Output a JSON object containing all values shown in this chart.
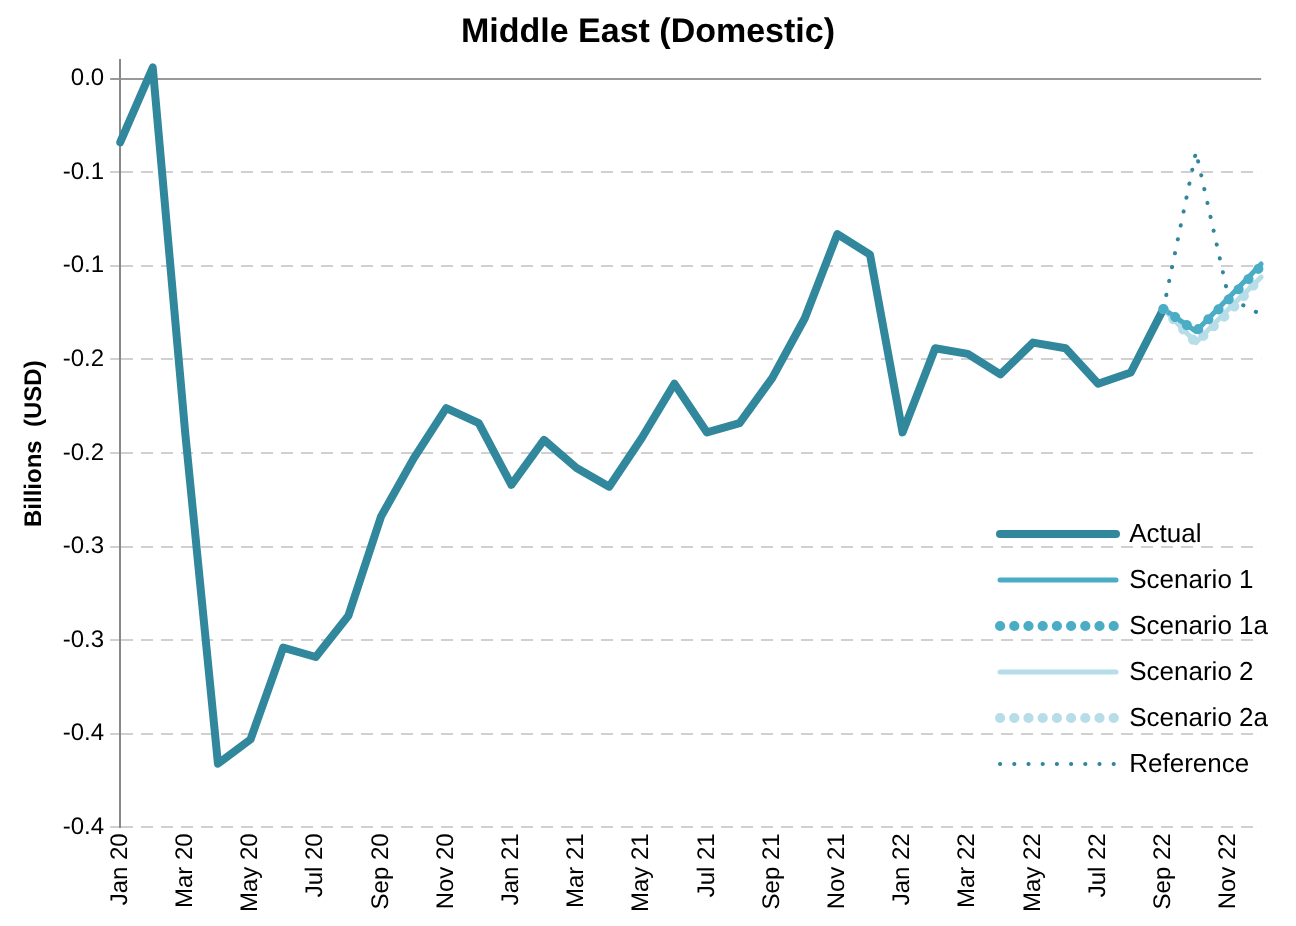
{
  "chart_data": {
    "type": "line",
    "title": "Middle East (Domestic)",
    "ylabel": "Billions  (USD)",
    "categories": [
      "Jan 20",
      null,
      "Mar 20",
      null,
      "May 20",
      null,
      "Jul 20",
      null,
      "Sep 20",
      null,
      "Nov 20",
      null,
      "Jan 21",
      null,
      "Mar 21",
      null,
      "May 21",
      null,
      "Jul 21",
      null,
      "Sep 21",
      null,
      "Nov 21",
      null,
      "Jan 22",
      null,
      "Mar 22",
      null,
      "May 22",
      null,
      "Jul 22",
      null,
      "Sep 22",
      null,
      "Nov 22",
      null
    ],
    "ylim": [
      -0.4,
      0.01
    ],
    "yticks": [
      {
        "value": 0,
        "label": "0.0"
      },
      {
        "value": -0.05,
        "label": "-0.1"
      },
      {
        "value": -0.1,
        "label": "-0.1"
      },
      {
        "value": -0.15,
        "label": "-0.2"
      },
      {
        "value": -0.2,
        "label": "-0.2"
      },
      {
        "value": -0.25,
        "label": "-0.3"
      },
      {
        "value": -0.3,
        "label": "-0.3"
      },
      {
        "value": -0.35,
        "label": "-0.4"
      },
      {
        "value": -0.4,
        "label": "-0.4"
      }
    ],
    "grid": "y",
    "legend": "bottom right",
    "marker": "none",
    "series": [
      {
        "name": "Actual",
        "color": "#31879c",
        "line_style": "solid",
        "values": [
          -0.034,
          0.006,
          -0.19,
          -0.366,
          -0.353,
          -0.304,
          -0.309,
          -0.287,
          -0.234,
          -0.203,
          -0.176,
          -0.184,
          -0.217,
          -0.193,
          -0.208,
          -0.218,
          -0.192,
          -0.163,
          -0.189,
          -0.184,
          -0.16,
          -0.128,
          -0.083,
          -0.094,
          -0.189,
          -0.144,
          -0.147,
          -0.158,
          -0.141,
          -0.144,
          -0.163,
          -0.157,
          -0.123,
          null,
          null,
          null
        ]
      },
      {
        "name": "Scenario 1",
        "color": "#4bacc6",
        "line_style": "solid",
        "values": [
          null,
          null,
          null,
          null,
          null,
          null,
          null,
          null,
          null,
          null,
          null,
          null,
          null,
          null,
          null,
          null,
          null,
          null,
          null,
          null,
          null,
          null,
          null,
          null,
          null,
          null,
          null,
          null,
          null,
          null,
          null,
          null,
          -0.123,
          -0.135,
          -0.117,
          -0.099
        ]
      },
      {
        "name": "Scenario 1a",
        "color": "#4bacc6",
        "line_style": "dotted",
        "values": [
          null,
          null,
          null,
          null,
          null,
          null,
          null,
          null,
          null,
          null,
          null,
          null,
          null,
          null,
          null,
          null,
          null,
          null,
          null,
          null,
          null,
          null,
          null,
          null,
          null,
          null,
          null,
          null,
          null,
          null,
          null,
          null,
          -0.123,
          -0.135,
          -0.118,
          -0.1
        ]
      },
      {
        "name": "Scenario 2",
        "color": "#b7dde8",
        "line_style": "solid",
        "values": [
          null,
          null,
          null,
          null,
          null,
          null,
          null,
          null,
          null,
          null,
          null,
          null,
          null,
          null,
          null,
          null,
          null,
          null,
          null,
          null,
          null,
          null,
          null,
          null,
          null,
          null,
          null,
          null,
          null,
          null,
          null,
          null,
          -0.123,
          -0.141,
          -0.123,
          -0.106
        ]
      },
      {
        "name": "Scenario 2a",
        "color": "#b7dde8",
        "line_style": "dotted",
        "values": [
          null,
          null,
          null,
          null,
          null,
          null,
          null,
          null,
          null,
          null,
          null,
          null,
          null,
          null,
          null,
          null,
          null,
          null,
          null,
          null,
          null,
          null,
          null,
          null,
          null,
          null,
          null,
          null,
          null,
          null,
          null,
          null,
          -0.123,
          -0.141,
          -0.125,
          -0.106
        ]
      },
      {
        "name": "Reference",
        "color": "#31859c",
        "line_style": "dotted",
        "values": [
          null,
          null,
          null,
          null,
          null,
          null,
          null,
          null,
          null,
          null,
          null,
          null,
          null,
          null,
          null,
          null,
          null,
          null,
          null,
          null,
          null,
          null,
          null,
          null,
          null,
          null,
          null,
          null,
          null,
          null,
          null,
          null,
          -0.123,
          -0.039,
          -0.117,
          -0.126
        ]
      }
    ]
  }
}
